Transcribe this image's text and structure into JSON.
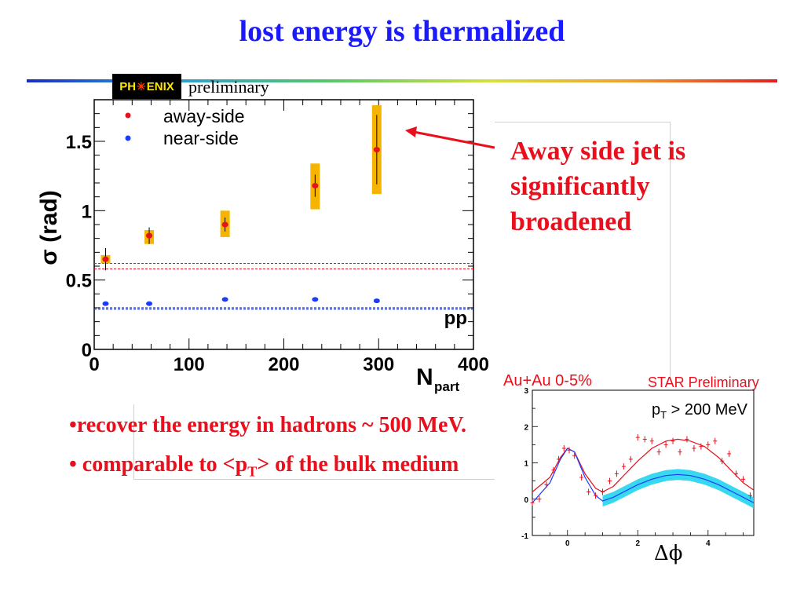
{
  "slide": {
    "title": "lost energy is thermalized",
    "logo_text_left": "PH",
    "logo_text_right": "ENIX",
    "preliminary": "preliminary",
    "callout": "Away side jet is significantly broadened",
    "bullet1": "•recover the energy in hadrons ~ 500 MeV.",
    "bullet2_pre": "• comparable to <p",
    "bullet2_sub": "T",
    "bullet2_post": "> of the bulk medium",
    "colors": {
      "title": "#1a1aff",
      "callout": "#e8101c",
      "error_band": "#f5b400",
      "away": "#e8101c",
      "near": "#1a3cff"
    }
  },
  "chart_data": [
    {
      "type": "scatter",
      "ylabel": "σ (rad)",
      "xlabel_main": "N",
      "xlabel_sub": "part",
      "xlim": [
        0,
        400
      ],
      "ylim": [
        0,
        1.8
      ],
      "xticks": [
        "0",
        "100",
        "200",
        "300",
        "400"
      ],
      "yticks": [
        "0",
        "0.5",
        "1",
        "1.5"
      ],
      "legend": [
        "away-side",
        "near-side"
      ],
      "legend_position": "top-left",
      "pp_label": "pp",
      "series": [
        {
          "name": "away-side",
          "x": [
            12,
            58,
            138,
            233,
            298
          ],
          "values": [
            0.65,
            0.82,
            0.9,
            1.18,
            1.44
          ],
          "err": [
            0.08,
            0.06,
            0.05,
            0.08,
            0.25
          ],
          "sys_low": [
            0.62,
            0.76,
            0.81,
            1.01,
            1.12
          ],
          "sys_high": [
            0.68,
            0.86,
            1.0,
            1.34,
            1.76
          ]
        },
        {
          "name": "near-side",
          "x": [
            12,
            58,
            138,
            233,
            298
          ],
          "values": [
            0.33,
            0.33,
            0.36,
            0.36,
            0.35
          ]
        }
      ],
      "pp_away_band": [
        0.58,
        0.62
      ],
      "pp_near_band": [
        0.29,
        0.3
      ]
    },
    {
      "type": "line",
      "title_left": "Au+Au 0-5%",
      "title_right": "STAR Preliminary",
      "annotation_pre": "p",
      "annotation_sub": "T",
      "annotation_post": " > 200 MeV",
      "xlabel": "Δϕ",
      "xlim": [
        -1,
        5.3
      ],
      "ylim": [
        -1,
        3
      ],
      "xticks": [
        "0",
        "2",
        "4"
      ],
      "yticks": [
        "-1",
        "0",
        "1",
        "2",
        "3"
      ],
      "points_x": [
        -1.0,
        -0.8,
        -0.6,
        -0.4,
        -0.25,
        -0.1,
        0.05,
        0.2,
        0.4,
        0.6,
        0.8,
        1.0,
        1.2,
        1.4,
        1.6,
        1.8,
        2.0,
        2.2,
        2.4,
        2.6,
        2.8,
        3.0,
        3.2,
        3.4,
        3.6,
        3.8,
        4.0,
        4.2,
        4.4,
        4.6,
        4.8,
        5.0,
        5.2
      ],
      "points_y": [
        -0.1,
        0.0,
        0.4,
        0.8,
        1.1,
        1.4,
        1.35,
        1.2,
        0.6,
        0.2,
        0.1,
        0.2,
        0.5,
        0.7,
        0.9,
        1.1,
        1.7,
        1.65,
        1.6,
        1.3,
        1.5,
        1.6,
        1.3,
        1.65,
        1.4,
        1.45,
        1.5,
        1.6,
        1.05,
        1.25,
        0.7,
        0.55,
        0.1
      ],
      "red_curve_x": [
        -1.0,
        -0.5,
        -0.2,
        0.0,
        0.2,
        0.5,
        0.8,
        1.0,
        1.3,
        1.6,
        2.0,
        2.4,
        2.8,
        3.14,
        3.5,
        3.9,
        4.3,
        4.7,
        5.0,
        5.3
      ],
      "red_curve_y": [
        0.2,
        0.6,
        1.15,
        1.4,
        1.3,
        0.7,
        0.3,
        0.2,
        0.35,
        0.65,
        1.05,
        1.4,
        1.6,
        1.65,
        1.6,
        1.45,
        1.15,
        0.75,
        0.45,
        0.25
      ],
      "blue_curve_x": [
        -1.0,
        -0.5,
        -0.2,
        0.0,
        0.2,
        0.5,
        0.8,
        1.0,
        1.3,
        1.6,
        2.0,
        2.4,
        2.8,
        3.14,
        3.5,
        3.9,
        4.3,
        4.7,
        5.0,
        5.3
      ],
      "blue_curve_y": [
        -0.1,
        0.45,
        1.1,
        1.4,
        1.3,
        0.6,
        0.1,
        -0.05,
        0.05,
        0.2,
        0.4,
        0.55,
        0.65,
        0.68,
        0.65,
        0.55,
        0.4,
        0.2,
        0.05,
        -0.1
      ],
      "band_halfwidth": 0.15
    }
  ]
}
